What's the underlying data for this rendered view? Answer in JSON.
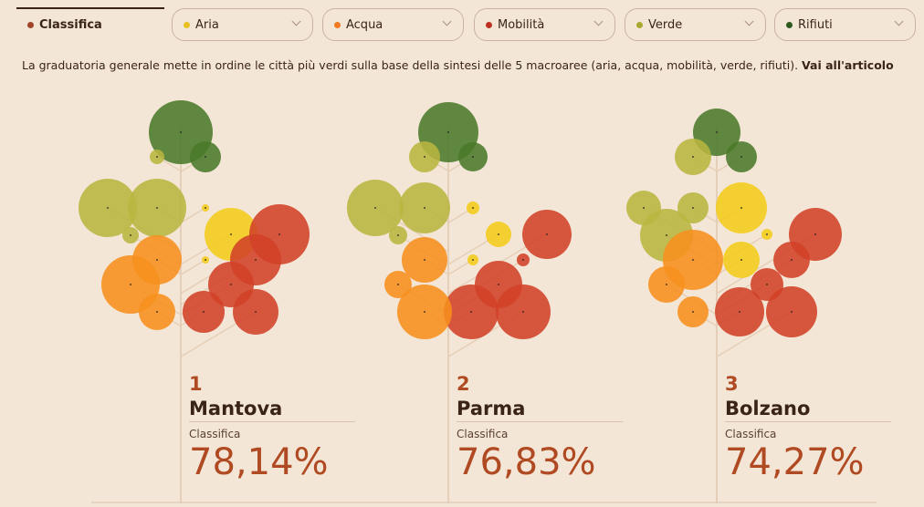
{
  "tabs": [
    {
      "label": "Classifica"
    },
    {
      "label": "Aria"
    },
    {
      "label": "Acqua"
    },
    {
      "label": "Mobilità"
    },
    {
      "label": "Verde"
    },
    {
      "label": "Rifiuti"
    }
  ],
  "description": {
    "text": "La graduatoria generale mette in ordine le città più verdi sulla base della sintesi delle 5 macroaree (aria, acqua, mobilità, verde, rifiuti).",
    "link": "Vai all'articolo"
  },
  "cards": [
    {
      "rank": 1,
      "city": "Mantova",
      "label": "Classifica",
      "score": "78,14%"
    },
    {
      "rank": 2,
      "city": "Parma",
      "label": "Classifica",
      "score": "76,83%"
    },
    {
      "rank": 3,
      "city": "Bolzano",
      "label": "Classifica",
      "score": "74,27%"
    }
  ]
}
